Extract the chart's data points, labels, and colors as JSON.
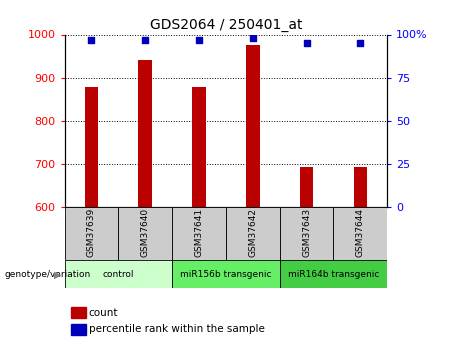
{
  "title": "GDS2064 / 250401_at",
  "samples": [
    "GSM37639",
    "GSM37640",
    "GSM37641",
    "GSM37642",
    "GSM37643",
    "GSM37644"
  ],
  "counts": [
    878,
    940,
    878,
    975,
    693,
    693
  ],
  "percentiles": [
    97,
    97,
    97,
    98,
    95,
    95
  ],
  "ylim_left": [
    600,
    1000
  ],
  "ylim_right": [
    0,
    100
  ],
  "yticks_left": [
    600,
    700,
    800,
    900,
    1000
  ],
  "yticks_right": [
    0,
    25,
    50,
    75,
    100
  ],
  "ytick_labels_right": [
    "0",
    "25",
    "50",
    "75",
    "100%"
  ],
  "bar_color": "#bb0000",
  "dot_color": "#0000bb",
  "groups": [
    {
      "label": "control",
      "indices": [
        0,
        1
      ],
      "color": "#ccffcc"
    },
    {
      "label": "miR156b transgenic",
      "indices": [
        2,
        3
      ],
      "color": "#66ee66"
    },
    {
      "label": "miR164b transgenic",
      "indices": [
        4,
        5
      ],
      "color": "#44cc44"
    }
  ],
  "xlabel_group": "genotype/variation",
  "legend_count_label": "count",
  "legend_pct_label": "percentile rank within the sample",
  "bar_width": 0.25,
  "dot_size": 18,
  "sample_box_color": "#cccccc",
  "title_fontsize": 10,
  "tick_fontsize": 8
}
